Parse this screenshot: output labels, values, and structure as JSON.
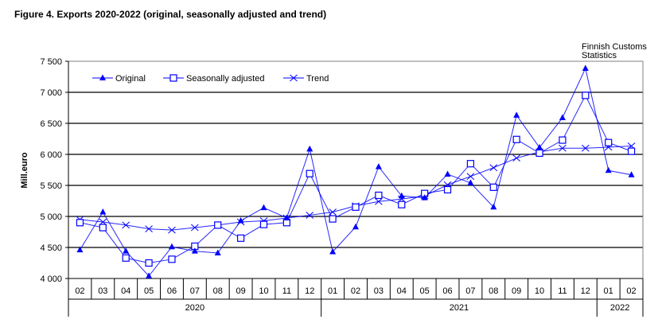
{
  "chart_data": {
    "type": "line",
    "title": "Figure  4. Exports 2020-2022 (original, seasonally adjusted and trend)",
    "source": [
      "Finnish Customs",
      "Statistics"
    ],
    "ylabel": "Mill.euro",
    "xlabel": "",
    "ylim": [
      4000,
      7500
    ],
    "yticks": [
      4000,
      4500,
      5000,
      5500,
      6000,
      6500,
      7000,
      7500
    ],
    "ytick_labels": [
      "4 000",
      "4 500",
      "5 000",
      "5 500",
      "6 000",
      "6 500",
      "7 000",
      "7 500"
    ],
    "grid": true,
    "legend_position": "top-left",
    "categories": [
      "02",
      "03",
      "04",
      "05",
      "06",
      "07",
      "08",
      "09",
      "10",
      "11",
      "12",
      "01",
      "02",
      "03",
      "04",
      "05",
      "06",
      "07",
      "08",
      "09",
      "10",
      "11",
      "12",
      "01",
      "02"
    ],
    "years": [
      {
        "label": "2020",
        "start": 0,
        "end": 10
      },
      {
        "label": "2021",
        "start": 11,
        "end": 22
      },
      {
        "label": "2022",
        "start": 23,
        "end": 24
      }
    ],
    "series": [
      {
        "name": "Original",
        "marker": "triangle",
        "color": "#0000ff",
        "values": [
          4460,
          5070,
          4440,
          4040,
          4510,
          4440,
          4410,
          4930,
          5140,
          4975,
          6085,
          4430,
          4830,
          5800,
          5330,
          5300,
          5680,
          5540,
          5150,
          6630,
          6110,
          6590,
          7385,
          5740,
          5670
        ]
      },
      {
        "name": "Seasonally adjusted",
        "marker": "square",
        "color": "#0000ff",
        "values": [
          4900,
          4820,
          4330,
          4250,
          4310,
          4520,
          4860,
          4650,
          4870,
          4900,
          5690,
          4960,
          5150,
          5340,
          5190,
          5370,
          5430,
          5850,
          5470,
          6240,
          6020,
          6230,
          6950,
          6190,
          6050
        ]
      },
      {
        "name": "Trend",
        "marker": "x",
        "color": "#0000ff",
        "values": [
          4950,
          4910,
          4860,
          4800,
          4780,
          4820,
          4860,
          4910,
          4930,
          4975,
          5020,
          5070,
          5170,
          5240,
          5280,
          5330,
          5510,
          5645,
          5785,
          5940,
          6040,
          6100,
          6100,
          6115,
          6135
        ]
      }
    ]
  }
}
